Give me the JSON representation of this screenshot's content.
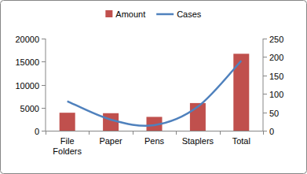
{
  "chart_data": {
    "type": "bar",
    "categories": [
      "File Folders",
      "Paper",
      "Pens",
      "Staplers",
      "Total"
    ],
    "series": [
      {
        "name": "Amount",
        "color": "#c0504d",
        "values": [
          3900,
          3800,
          3000,
          6000,
          16700
        ]
      },
      {
        "name": "Cases",
        "type": "line",
        "axis": "y2",
        "color": "#4f81bd",
        "line_style": "smooth",
        "values": [
          80,
          30,
          15,
          65,
          190
        ]
      }
    ],
    "ylim": [
      0,
      20000
    ],
    "yticks": [
      0,
      5000,
      10000,
      15000,
      20000
    ],
    "y2lim": [
      0,
      250
    ],
    "y2ticks": [
      0,
      50,
      100,
      150,
      200,
      250
    ],
    "grid": false,
    "legend": "top"
  }
}
